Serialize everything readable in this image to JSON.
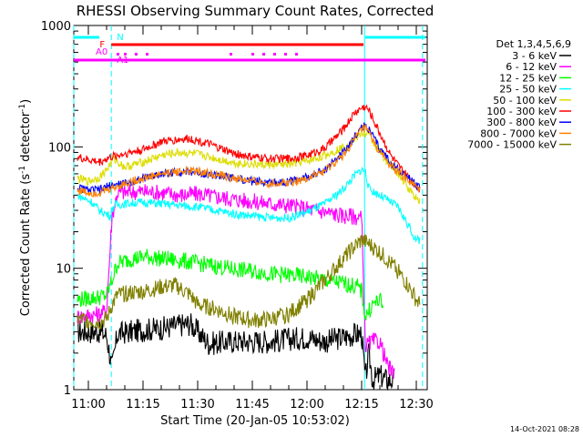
{
  "chart_data": {
    "type": "line",
    "title": "RHESSI Observing Summary Count Rates, Corrected",
    "xlabel": "Start Time (20-Jan-05 10:53:02)",
    "ylabel_main": "Corrected Count Rate (s",
    "ylabel_sup1": "-1",
    "ylabel_mid": " detector",
    "ylabel_sup2": "-1",
    "ylabel_end": ")",
    "yscale": "log",
    "ylim": [
      1,
      1000
    ],
    "xlim_minutes": [
      -4.0,
      93.0
    ],
    "x_ticks": [
      {
        "minute": 0,
        "label": "11:00"
      },
      {
        "minute": 15,
        "label": "11:15"
      },
      {
        "minute": 30,
        "label": "11:30"
      },
      {
        "minute": 45,
        "label": "11:45"
      },
      {
        "minute": 60,
        "label": "12:00"
      },
      {
        "minute": 75,
        "label": "12:15"
      },
      {
        "minute": 90,
        "label": "12:30"
      }
    ],
    "y_ticks": [
      {
        "value": 1,
        "label": "1"
      },
      {
        "value": 10,
        "label": "10"
      },
      {
        "value": 100,
        "label": "100"
      },
      {
        "value": 1000,
        "label": "1000"
      }
    ],
    "legend_title": "Det 1,3,4,5,6,9",
    "series": [
      {
        "name": "3 - 6 keV",
        "color": "#000000",
        "x": [
          -3,
          3,
          5,
          6.5,
          8,
          15,
          20,
          25,
          28,
          33,
          40,
          50,
          55,
          60,
          65,
          70,
          72,
          75,
          76,
          77,
          78,
          80,
          82,
          84
        ],
        "y": [
          3.0,
          3.0,
          2.8,
          1.5,
          2.9,
          3.1,
          3.2,
          3.4,
          3.5,
          2.4,
          2.5,
          2.5,
          2.6,
          2.7,
          2.5,
          2.7,
          2.8,
          2.9,
          1.2,
          2.0,
          1.2,
          1.3,
          1.2,
          1.2
        ]
      },
      {
        "name": "6 - 12 keV",
        "color": "#ff00ff",
        "x": [
          -3,
          3,
          5,
          6.5,
          8,
          15,
          20,
          25,
          30,
          40,
          50,
          55,
          60,
          65,
          70,
          72,
          75,
          76,
          78,
          80,
          82,
          84
        ],
        "y": [
          4.0,
          4.2,
          4.5,
          27,
          42,
          43,
          42,
          40,
          41,
          37,
          34,
          33,
          31,
          29,
          27,
          27,
          26,
          2.3,
          2.5,
          2.5,
          1.6,
          1.3
        ]
      },
      {
        "name": "12 - 25 keV",
        "color": "#00ff00",
        "x": [
          -3,
          3,
          5,
          6.5,
          8,
          12,
          16,
          20,
          26,
          30,
          40,
          45,
          50,
          60,
          65,
          70,
          74,
          75,
          76,
          78,
          80,
          81
        ],
        "y": [
          5.5,
          5.8,
          6.0,
          8.0,
          11.0,
          12.0,
          12.5,
          12.0,
          11.5,
          11.0,
          9.8,
          9.5,
          9.0,
          8.5,
          8.0,
          7.5,
          7.0,
          6.5,
          4.0,
          5.0,
          5.5,
          4.5
        ]
      },
      {
        "name": "25 - 50 keV",
        "color": "#00ffff",
        "x": [
          -3,
          1,
          3,
          5,
          6,
          7,
          10,
          15,
          20,
          25,
          30,
          35,
          40,
          45,
          50,
          55,
          60,
          65,
          70,
          73,
          75,
          76,
          77,
          80,
          85,
          88,
          90,
          91
        ],
        "y": [
          40,
          35,
          30,
          28,
          27,
          33,
          34,
          35,
          34,
          33,
          32,
          30,
          28,
          27,
          26,
          26,
          29,
          34,
          45,
          58,
          65,
          63,
          45,
          40,
          32,
          22,
          17,
          17
        ]
      },
      {
        "name": "50 - 100 keV",
        "color": "#dddd00",
        "x": [
          -3,
          0,
          3,
          5,
          7,
          10,
          15,
          20,
          25,
          30,
          35,
          40,
          45,
          50,
          55,
          60,
          65,
          70,
          73,
          75,
          76,
          77,
          80,
          85,
          88,
          90,
          91
        ],
        "y": [
          55,
          52,
          56,
          65,
          80,
          68,
          75,
          85,
          90,
          87,
          80,
          74,
          72,
          71,
          72,
          76,
          85,
          100,
          115,
          130,
          128,
          125,
          90,
          60,
          45,
          38,
          36
        ]
      },
      {
        "name": "100 - 300 keV",
        "color": "#ff0000",
        "x": [
          -3,
          0,
          3,
          6,
          10,
          15,
          20,
          25,
          28,
          32,
          35,
          40,
          45,
          50,
          55,
          60,
          65,
          70,
          73,
          75,
          76,
          77,
          80,
          83,
          85,
          88,
          90,
          91
        ],
        "y": [
          82,
          78,
          75,
          82,
          88,
          95,
          110,
          115,
          117,
          108,
          100,
          88,
          82,
          80,
          80,
          85,
          98,
          140,
          190,
          210,
          215,
          200,
          130,
          85,
          70,
          55,
          48,
          45
        ]
      },
      {
        "name": "300 - 800 keV",
        "color": "#0000ff",
        "x": [
          -3,
          0,
          3,
          6,
          10,
          15,
          20,
          25,
          30,
          35,
          40,
          45,
          50,
          55,
          60,
          65,
          70,
          73,
          75,
          76,
          77,
          80,
          83,
          85,
          88,
          90,
          91
        ],
        "y": [
          46,
          44,
          44,
          48,
          50,
          55,
          60,
          62,
          62,
          58,
          55,
          52,
          51,
          52,
          56,
          65,
          90,
          120,
          145,
          150,
          140,
          95,
          75,
          65,
          55,
          48,
          45
        ]
      },
      {
        "name": "800 - 7000 keV",
        "color": "#ff8000",
        "x": [
          -3,
          0,
          3,
          6,
          10,
          15,
          20,
          25,
          30,
          35,
          40,
          45,
          50,
          55,
          60,
          65,
          70,
          73,
          75,
          76,
          77,
          80,
          83,
          85,
          88,
          90,
          91
        ],
        "y": [
          44,
          42,
          42,
          45,
          50,
          55,
          60,
          63,
          63,
          59,
          55,
          52,
          50,
          51,
          55,
          63,
          85,
          115,
          140,
          142,
          130,
          90,
          70,
          62,
          52,
          46,
          43
        ]
      },
      {
        "name": "7000 - 15000 keV",
        "color": "#808000",
        "x": [
          -3,
          3,
          5,
          6.5,
          8,
          12,
          16,
          20,
          24,
          28,
          30,
          35,
          40,
          45,
          50,
          55,
          60,
          65,
          70,
          73,
          75,
          76,
          78,
          80,
          85,
          88,
          90,
          91
        ],
        "y": [
          3.8,
          3.6,
          3.8,
          5.0,
          6.0,
          6.3,
          6.5,
          7.0,
          7.2,
          6.0,
          5.0,
          4.6,
          4.0,
          3.7,
          3.8,
          4.2,
          5.5,
          8.0,
          12.0,
          15.0,
          17.0,
          16.5,
          15.0,
          13.5,
          9.5,
          7.0,
          5.5,
          5.0
        ]
      }
    ],
    "vlines_minutes": [
      -4.0,
      6.3,
      75.8,
      91.7
    ],
    "flags": {
      "N_label": "N",
      "F_label": "F",
      "A0_label": "A0",
      "A1_label": "A1",
      "N_segments": [
        [
          -4.0,
          3.0
        ],
        [
          76.0,
          92.5
        ]
      ],
      "F_segments": [
        [
          6.3,
          75.5
        ]
      ],
      "A0_segments": [
        [
          -4.0,
          92.5
        ]
      ],
      "A1_dots": [
        8,
        10,
        13,
        16,
        39,
        45,
        48,
        51,
        54,
        57
      ],
      "A1_level": 1
    },
    "colors": {
      "N": "#00ffff",
      "F": "#ff0000",
      "A0": "#ff00ff",
      "vline": "#00ffff",
      "axis": "#000000"
    }
  },
  "timestamp": "14-Oct-2021 08:28"
}
